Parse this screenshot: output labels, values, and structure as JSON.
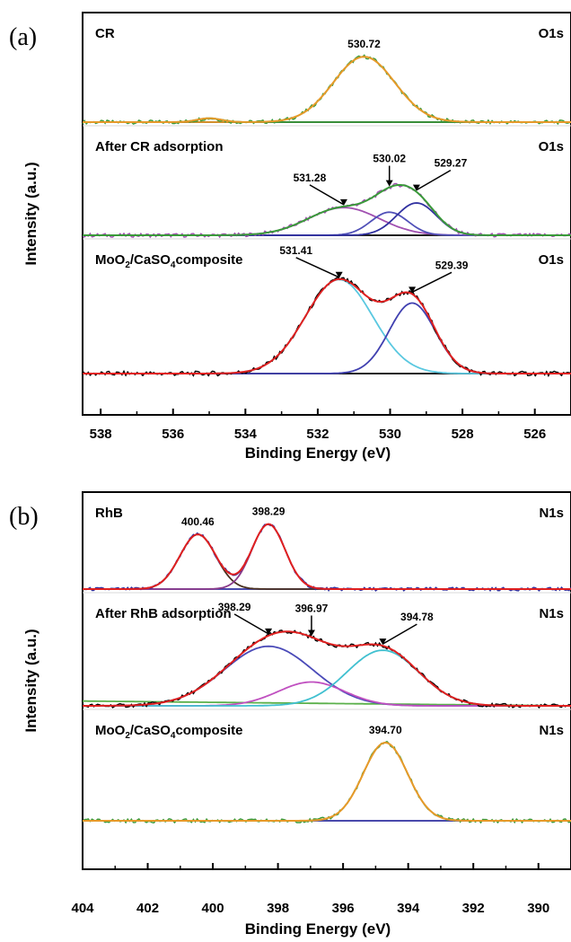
{
  "chart_data": [
    {
      "panel": "(a)",
      "type": "line",
      "xlabel": "Binding Energy (eV)",
      "ylabel": "Intensity (a.u.)",
      "xlim": [
        538.5,
        525
      ],
      "x_reversed": true,
      "xticks": [
        538,
        536,
        534,
        532,
        530,
        528,
        526
      ],
      "spectra": [
        {
          "label": "CR",
          "core_level": "O1s",
          "baseline_color": "#000000",
          "envelope_color": "#e69a2a",
          "raw_color": "#3a9a3a",
          "peaks": [
            {
              "center": 530.72,
              "height": 0.85,
              "fwhm": 2.0,
              "label": "530.72",
              "color": "#e69a2a"
            },
            {
              "center": 535.0,
              "height": 0.05,
              "fwhm": 0.8,
              "label": "",
              "color": "#3a9a3a"
            }
          ],
          "annotations": [
            {
              "text": "530.72",
              "peak_x": 530.72,
              "arrow": false
            }
          ]
        },
        {
          "label": "After CR adsorption",
          "core_level": "O1s",
          "baseline_color": "#000000",
          "envelope_color": "#3a9a3a",
          "raw_color": "#a04fb0",
          "peaks": [
            {
              "center": 531.28,
              "height": 0.36,
              "fwhm": 2.3,
              "label": "531.28",
              "color": "#a04fb0"
            },
            {
              "center": 530.02,
              "height": 0.3,
              "fwhm": 1.2,
              "label": "530.02",
              "color": "#5050b8"
            },
            {
              "center": 529.27,
              "height": 0.42,
              "fwhm": 1.3,
              "label": "529.27",
              "color": "#3030a0"
            }
          ],
          "annotations": [
            {
              "text": "531.28",
              "peak_x": 531.28,
              "arrow": true
            },
            {
              "text": "530.02",
              "peak_x": 530.02,
              "arrow": true
            },
            {
              "text": "529.27",
              "peak_x": 529.27,
              "arrow": true
            }
          ]
        },
        {
          "label": "MoO2/CaSO4composite",
          "label_parts": [
            "MoO",
            "2",
            "/CaSO",
            "4",
            "composite"
          ],
          "core_level": "O1s",
          "baseline_color": "#000000",
          "envelope_color": "#e02020",
          "raw_color": "#000000",
          "peaks": [
            {
              "center": 531.41,
              "height": 1.0,
              "fwhm": 2.2,
              "label": "531.41",
              "color": "#5ac8e0"
            },
            {
              "center": 529.39,
              "height": 0.75,
              "fwhm": 1.5,
              "label": "529.39",
              "color": "#4040b0"
            }
          ],
          "annotations": [
            {
              "text": "531.41",
              "peak_x": 531.41,
              "arrow": true
            },
            {
              "text": "529.39",
              "peak_x": 529.39,
              "arrow": true
            }
          ]
        }
      ]
    },
    {
      "panel": "(b)",
      "type": "line",
      "xlabel": "Binding Energy (eV)",
      "ylabel": "Intensity (a.u.)",
      "xlim": [
        404,
        389
      ],
      "x_reversed": true,
      "xticks": [
        404,
        402,
        400,
        398,
        396,
        394,
        392,
        390
      ],
      "spectra": [
        {
          "label": "RhB",
          "core_level": "N1s",
          "baseline_color": "#3030a0",
          "envelope_color": "#e02020",
          "raw_color": "#3030a0",
          "peaks": [
            {
              "center": 400.46,
              "height": 0.8,
              "fwhm": 1.3,
              "label": "400.46",
              "color": "#4a3020"
            },
            {
              "center": 398.29,
              "height": 0.95,
              "fwhm": 1.2,
              "label": "398.29",
              "color": "#8a3a8a"
            }
          ],
          "annotations": [
            {
              "text": "400.46",
              "peak_x": 400.46,
              "arrow": false
            },
            {
              "text": "398.29",
              "peak_x": 398.29,
              "arrow": false
            }
          ]
        },
        {
          "label": "After RhB adsorption",
          "core_level": "N1s",
          "baseline_color": "#5ab04a",
          "envelope_color": "#e02020",
          "raw_color": "#000000",
          "peaks": [
            {
              "center": 398.29,
              "height": 0.75,
              "fwhm": 3.2,
              "label": "398.29",
              "color": "#4a4ab8"
            },
            {
              "center": 396.97,
              "height": 0.3,
              "fwhm": 2.4,
              "label": "396.97",
              "color": "#c050c0"
            },
            {
              "center": 394.78,
              "height": 0.7,
              "fwhm": 2.6,
              "label": "394.78",
              "color": "#40c0d0"
            }
          ],
          "annotations": [
            {
              "text": "398.29",
              "peak_x": 398.29,
              "arrow": true
            },
            {
              "text": "396.97",
              "peak_x": 396.97,
              "arrow": true
            },
            {
              "text": "394.78",
              "peak_x": 394.78,
              "arrow": true
            }
          ]
        },
        {
          "label": "MoO2/CaSO4composite",
          "label_parts": [
            "MoO",
            "2",
            "/CaSO",
            "4",
            "composite"
          ],
          "core_level": "N1s",
          "baseline_color": "#3030a0",
          "envelope_color": "#e69a2a",
          "raw_color": "#3a9a3a",
          "peaks": [
            {
              "center": 394.7,
              "height": 1.0,
              "fwhm": 1.6,
              "label": "394.70",
              "color": "#e69a2a"
            }
          ],
          "annotations": [
            {
              "text": "394.70",
              "peak_x": 394.7,
              "arrow": false
            }
          ]
        }
      ]
    }
  ]
}
